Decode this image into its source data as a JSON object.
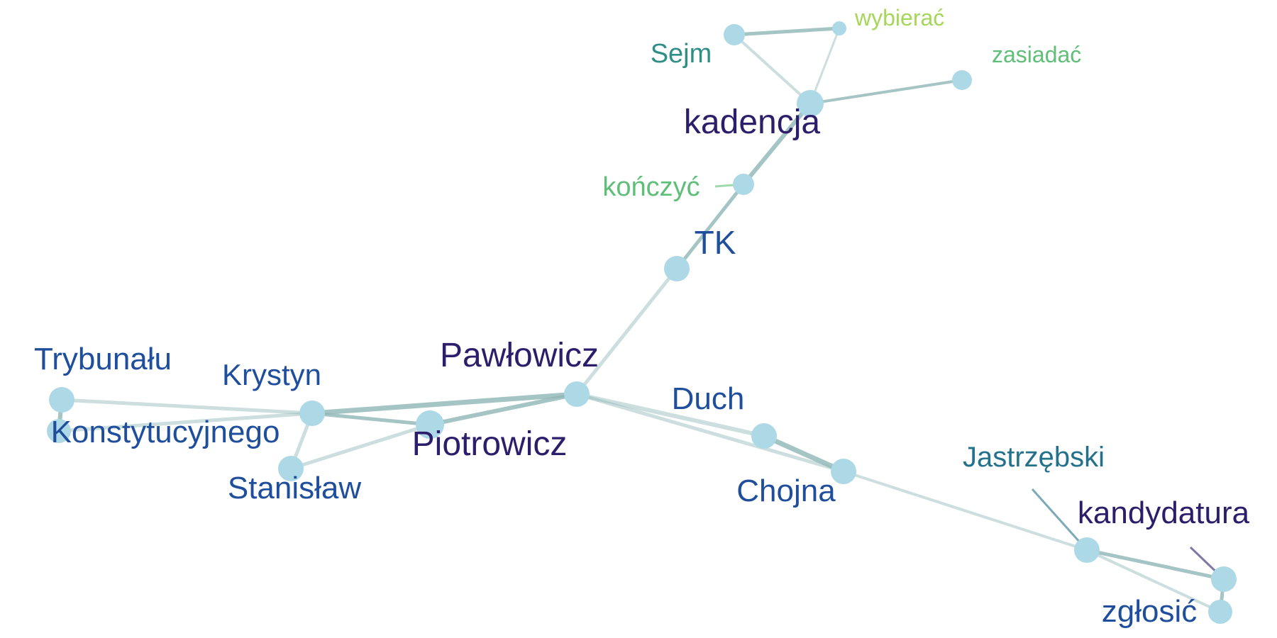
{
  "palette": {
    "node_fill": "#add8e6",
    "edge_color": "#8fb5b5"
  },
  "graph": {
    "nodes": [
      {
        "id": "sejm",
        "label": "Sejm",
        "color": "#2f8f87"
      },
      {
        "id": "wybierac",
        "label": "wybierać",
        "color": "#a6d75b"
      },
      {
        "id": "zasiadac",
        "label": "zasiadać",
        "color": "#5fbf78"
      },
      {
        "id": "kadencja",
        "label": "kadencja",
        "color": "#2d1e6b"
      },
      {
        "id": "konczyc",
        "label": "kończyć",
        "color": "#5fbf78"
      },
      {
        "id": "tk",
        "label": "TK",
        "color": "#1f4e9c"
      },
      {
        "id": "pawlowicz",
        "label": "Pawłowicz",
        "color": "#2d1e6b"
      },
      {
        "id": "trybunalu",
        "label": "Trybunału",
        "color": "#1f4e9c"
      },
      {
        "id": "konstytucyjnego",
        "label": "Konstytucyjnego",
        "color": "#1f4e9c"
      },
      {
        "id": "krystyn",
        "label": "Krystyn",
        "color": "#1f4e9c"
      },
      {
        "id": "stanislaw",
        "label": "Stanisław",
        "color": "#1f4e9c"
      },
      {
        "id": "piotrowicz",
        "label": "Piotrowicz",
        "color": "#2d1e6b"
      },
      {
        "id": "duch",
        "label": "Duch",
        "color": "#1f4e9c"
      },
      {
        "id": "chojna",
        "label": "Chojna",
        "color": "#1f4e9c"
      },
      {
        "id": "jastrzebski",
        "label": "Jastrzębski",
        "color": "#24718c"
      },
      {
        "id": "kandydatura",
        "label": "kandydatura",
        "color": "#2d1e6b"
      },
      {
        "id": "zglosic",
        "label": "zgłosić",
        "color": "#1f4e9c"
      }
    ],
    "edges": [
      {
        "source": "sejm",
        "target": "wybierac"
      },
      {
        "source": "sejm",
        "target": "kadencja"
      },
      {
        "source": "wybierac",
        "target": "kadencja"
      },
      {
        "source": "kadencja",
        "target": "zasiadac"
      },
      {
        "source": "kadencja",
        "target": "konczyc"
      },
      {
        "source": "konczyc",
        "target": "tk"
      },
      {
        "source": "tk",
        "target": "pawlowicz"
      },
      {
        "source": "pawlowicz",
        "target": "krystyn"
      },
      {
        "source": "pawlowicz",
        "target": "piotrowicz"
      },
      {
        "source": "krystyn",
        "target": "piotrowicz"
      },
      {
        "source": "krystyn",
        "target": "trybunalu"
      },
      {
        "source": "krystyn",
        "target": "konstytucyjnego"
      },
      {
        "source": "trybunalu",
        "target": "konstytucyjnego"
      },
      {
        "source": "krystyn",
        "target": "stanislaw"
      },
      {
        "source": "stanislaw",
        "target": "piotrowicz"
      },
      {
        "source": "pawlowicz",
        "target": "duch"
      },
      {
        "source": "pawlowicz",
        "target": "chojna"
      },
      {
        "source": "duch",
        "target": "chojna"
      },
      {
        "source": "chojna",
        "target": "jastrzebski"
      },
      {
        "source": "jastrzebski",
        "target": "kandydatura"
      },
      {
        "source": "jastrzebski",
        "target": "zglosic"
      },
      {
        "source": "kandydatura",
        "target": "zglosic"
      }
    ]
  }
}
